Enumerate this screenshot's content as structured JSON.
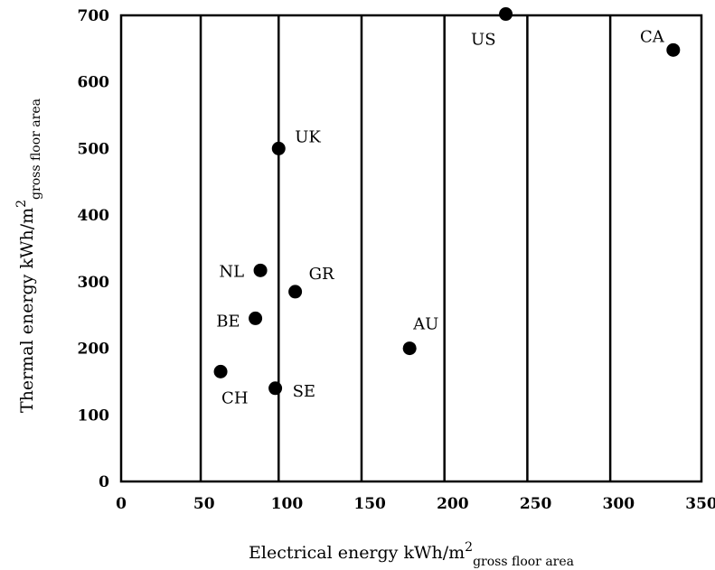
{
  "chart_data": {
    "type": "scatter",
    "title": "",
    "xlabel": {
      "main": "Electrical energy kWh/m",
      "sup": "2",
      "sub": "gross floor area"
    },
    "ylabel": {
      "main": "Thermal energy kWh/m",
      "sup": "2",
      "sub": "gross floor area"
    },
    "xlim": [
      0,
      350
    ],
    "ylim": [
      0,
      700
    ],
    "xticks": [
      "0",
      "50",
      "100",
      "150",
      "200",
      "250",
      "300",
      "350"
    ],
    "yticks": [
      "0",
      "100",
      "200",
      "300",
      "400",
      "500",
      "600",
      "700"
    ],
    "vertical_gridlines_at": [
      48,
      95,
      145,
      195,
      245,
      295
    ],
    "grid": "vertical only",
    "legend": "none",
    "point_color": "#000000",
    "points": [
      {
        "label": "US",
        "x": 232,
        "y": 702
      },
      {
        "label": "CA",
        "x": 333,
        "y": 648
      },
      {
        "label": "UK",
        "x": 95,
        "y": 500
      },
      {
        "label": "NL",
        "x": 84,
        "y": 317
      },
      {
        "label": "GR",
        "x": 105,
        "y": 285
      },
      {
        "label": "BE",
        "x": 81,
        "y": 245
      },
      {
        "label": "AU",
        "x": 174,
        "y": 200
      },
      {
        "label": "CH",
        "x": 60,
        "y": 165
      },
      {
        "label": "SE",
        "x": 93,
        "y": 140
      }
    ]
  }
}
